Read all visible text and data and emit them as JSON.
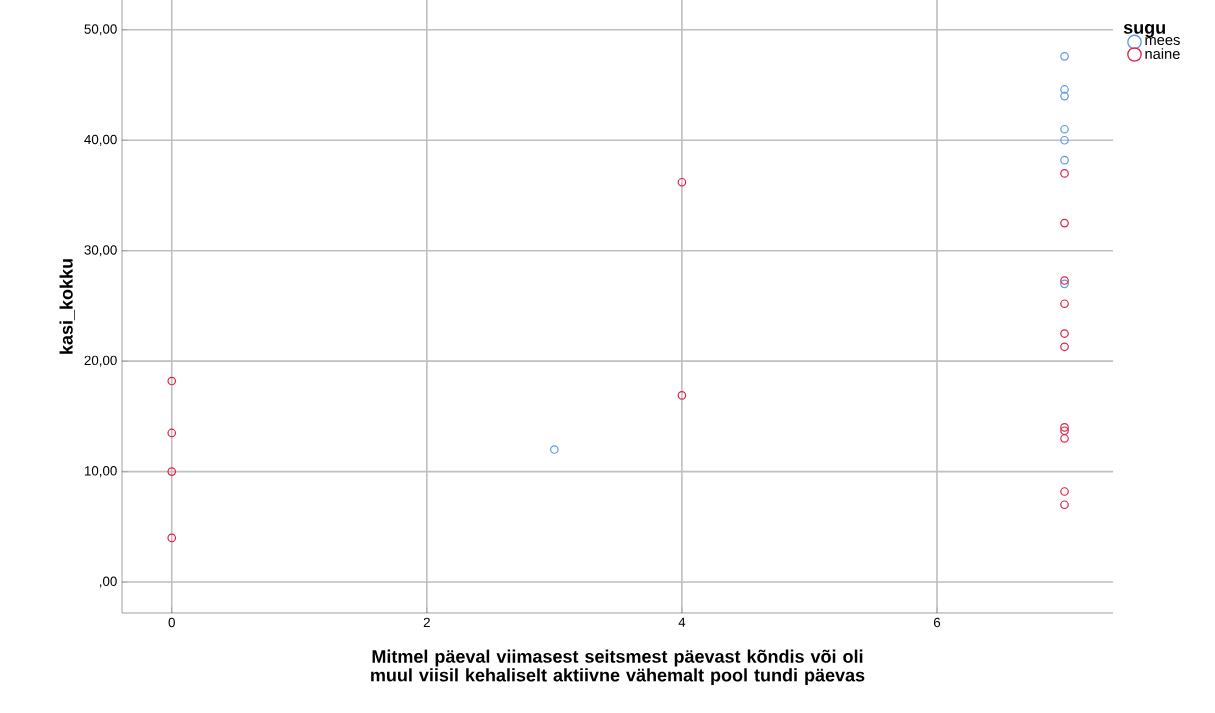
{
  "chart_data": {
    "type": "scatter",
    "xlabel": "Mitmel päeval viimasest seitsmest päevast kõndis või oli muul viisil kehaliselt aktiivne vähemalt pool tundi päevas",
    "ylabel": "kasi_kokku",
    "legend_title": "sugu",
    "series": [
      {
        "name": "mees",
        "color": "#5b9be8",
        "x": [
          3,
          7,
          7,
          7,
          7,
          7,
          7,
          7
        ],
        "values": [
          12.0,
          47.6,
          44.6,
          44.0,
          41.0,
          40.0,
          38.2,
          27.0
        ]
      },
      {
        "name": "naine",
        "color": "#e0204a",
        "x": [
          0,
          0,
          0,
          0,
          4,
          4,
          7,
          7,
          7,
          7,
          7,
          7,
          7,
          7,
          7,
          7,
          7
        ],
        "values": [
          18.2,
          13.5,
          10.0,
          4.0,
          36.2,
          16.9,
          37.0,
          32.5,
          27.3,
          25.2,
          22.5,
          21.3,
          14.0,
          13.7,
          13.0,
          8.2,
          7.0
        ]
      }
    ],
    "xlim": [
      -0.39,
      7.38
    ],
    "ylim": [
      -2.8,
      52.7
    ],
    "xticks": [
      0,
      2,
      4,
      6
    ],
    "yticks": [
      {
        "value": 0,
        "label": ",00"
      },
      {
        "value": 10,
        "label": "10,00"
      },
      {
        "value": 20,
        "label": "20,00"
      },
      {
        "value": 30,
        "label": "30,00"
      },
      {
        "value": 40,
        "label": "40,00"
      },
      {
        "value": 50,
        "label": "50,00"
      }
    ],
    "grid": true,
    "legend": "top right",
    "marker": "circle"
  }
}
